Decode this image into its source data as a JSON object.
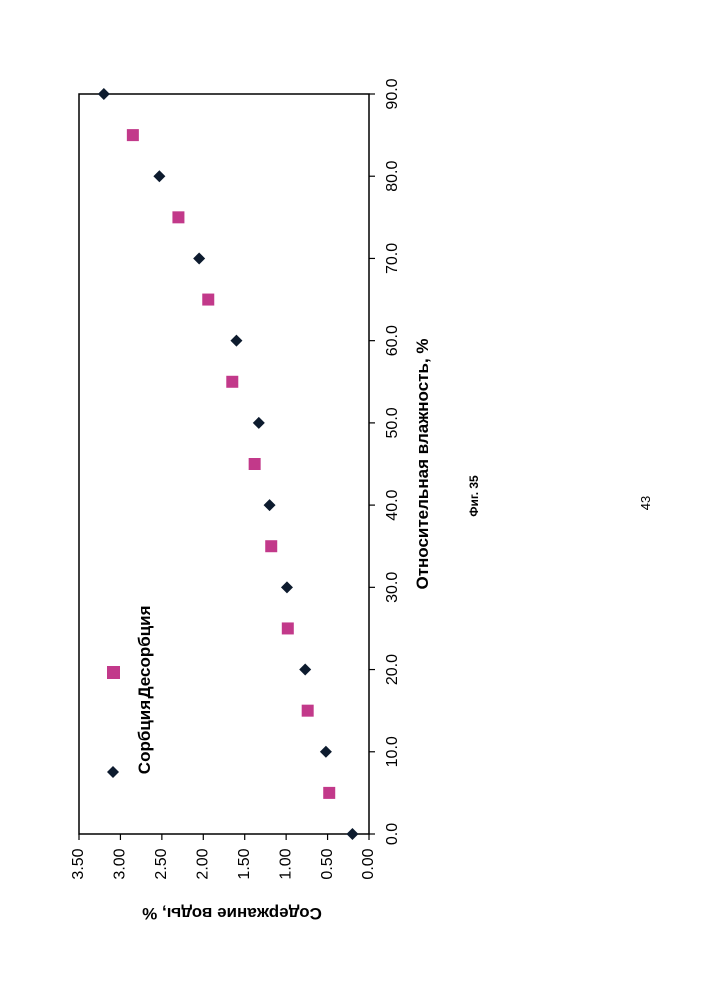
{
  "figure_caption": "Фиг. 35",
  "page_number": "43",
  "chart_data": {
    "type": "scatter",
    "xlabel": "Относительная влажность, %",
    "ylabel": "Содержание воды, %",
    "xlim": [
      0,
      90
    ],
    "ylim": [
      0,
      3.5
    ],
    "x_ticks": [
      "0.0",
      "10.0",
      "20.0",
      "30.0",
      "40.0",
      "50.0",
      "60.0",
      "70.0",
      "80.0",
      "90.0"
    ],
    "y_ticks": [
      "0.00",
      "0.50",
      "1.00",
      "1.50",
      "2.00",
      "2.50",
      "3.00",
      "3.50"
    ],
    "grid": false,
    "legend_position": "top-left",
    "series": [
      {
        "name": "Сорбция",
        "marker": "diamond",
        "color": "#0d1b2e",
        "points": [
          {
            "x": 0,
            "y": 0.2
          },
          {
            "x": 10,
            "y": 0.52
          },
          {
            "x": 20,
            "y": 0.77
          },
          {
            "x": 30,
            "y": 0.99
          },
          {
            "x": 40,
            "y": 1.2
          },
          {
            "x": 50,
            "y": 1.33
          },
          {
            "x": 60,
            "y": 1.6
          },
          {
            "x": 70,
            "y": 2.05
          },
          {
            "x": 80,
            "y": 2.53
          },
          {
            "x": 90,
            "y": 3.2
          }
        ]
      },
      {
        "name": "Десорбция",
        "marker": "square",
        "color": "#c2398a",
        "points": [
          {
            "x": 5,
            "y": 0.48
          },
          {
            "x": 15,
            "y": 0.74
          },
          {
            "x": 25,
            "y": 0.98
          },
          {
            "x": 35,
            "y": 1.18
          },
          {
            "x": 45,
            "y": 1.38
          },
          {
            "x": 55,
            "y": 1.65
          },
          {
            "x": 65,
            "y": 1.94
          },
          {
            "x": 75,
            "y": 2.3
          },
          {
            "x": 85,
            "y": 2.85
          }
        ]
      }
    ]
  }
}
